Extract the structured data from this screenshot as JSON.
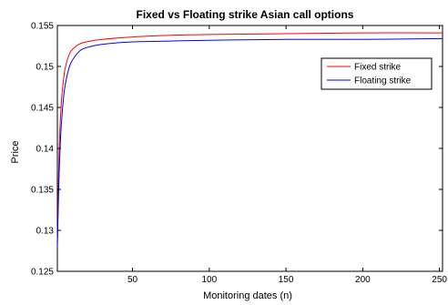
{
  "chart_data": {
    "type": "line",
    "title": "Fixed vs Floating strike Asian call options",
    "xlabel": "Monitoring dates (n)",
    "ylabel": "Price",
    "xlim": [
      1,
      252
    ],
    "ylim": [
      0.125,
      0.155
    ],
    "x_ticks": [
      50,
      100,
      150,
      200,
      250
    ],
    "x_tick_labels": [
      "50",
      "100",
      "150",
      "200",
      "250"
    ],
    "y_ticks": [
      0.125,
      0.13,
      0.135,
      0.14,
      0.145,
      0.15,
      0.155
    ],
    "y_tick_labels": [
      "0.125",
      "0.13",
      "0.135",
      "0.14",
      "0.145",
      "0.15",
      "0.155"
    ],
    "grid": false,
    "legend_position": "top-right",
    "x": [
      1,
      2,
      3,
      4,
      5,
      6,
      8,
      10,
      15,
      20,
      30,
      50,
      75,
      100,
      150,
      200,
      252
    ],
    "series": [
      {
        "name": "Fixed strike",
        "color": "#ff0000",
        "values": [
          0.128,
          0.1387,
          0.1437,
          0.1466,
          0.1484,
          0.1497,
          0.1511,
          0.1519,
          0.1527,
          0.153,
          0.1533,
          0.1536,
          0.1538,
          0.1539,
          0.154,
          0.1541,
          0.1541
        ]
      },
      {
        "name": "Floating strike",
        "color": "#0000ff",
        "values": [
          0.128,
          0.136,
          0.141,
          0.144,
          0.1461,
          0.1476,
          0.1494,
          0.1505,
          0.1518,
          0.1523,
          0.1527,
          0.153,
          0.1531,
          0.1532,
          0.1533,
          0.1533,
          0.1534
        ]
      }
    ]
  }
}
